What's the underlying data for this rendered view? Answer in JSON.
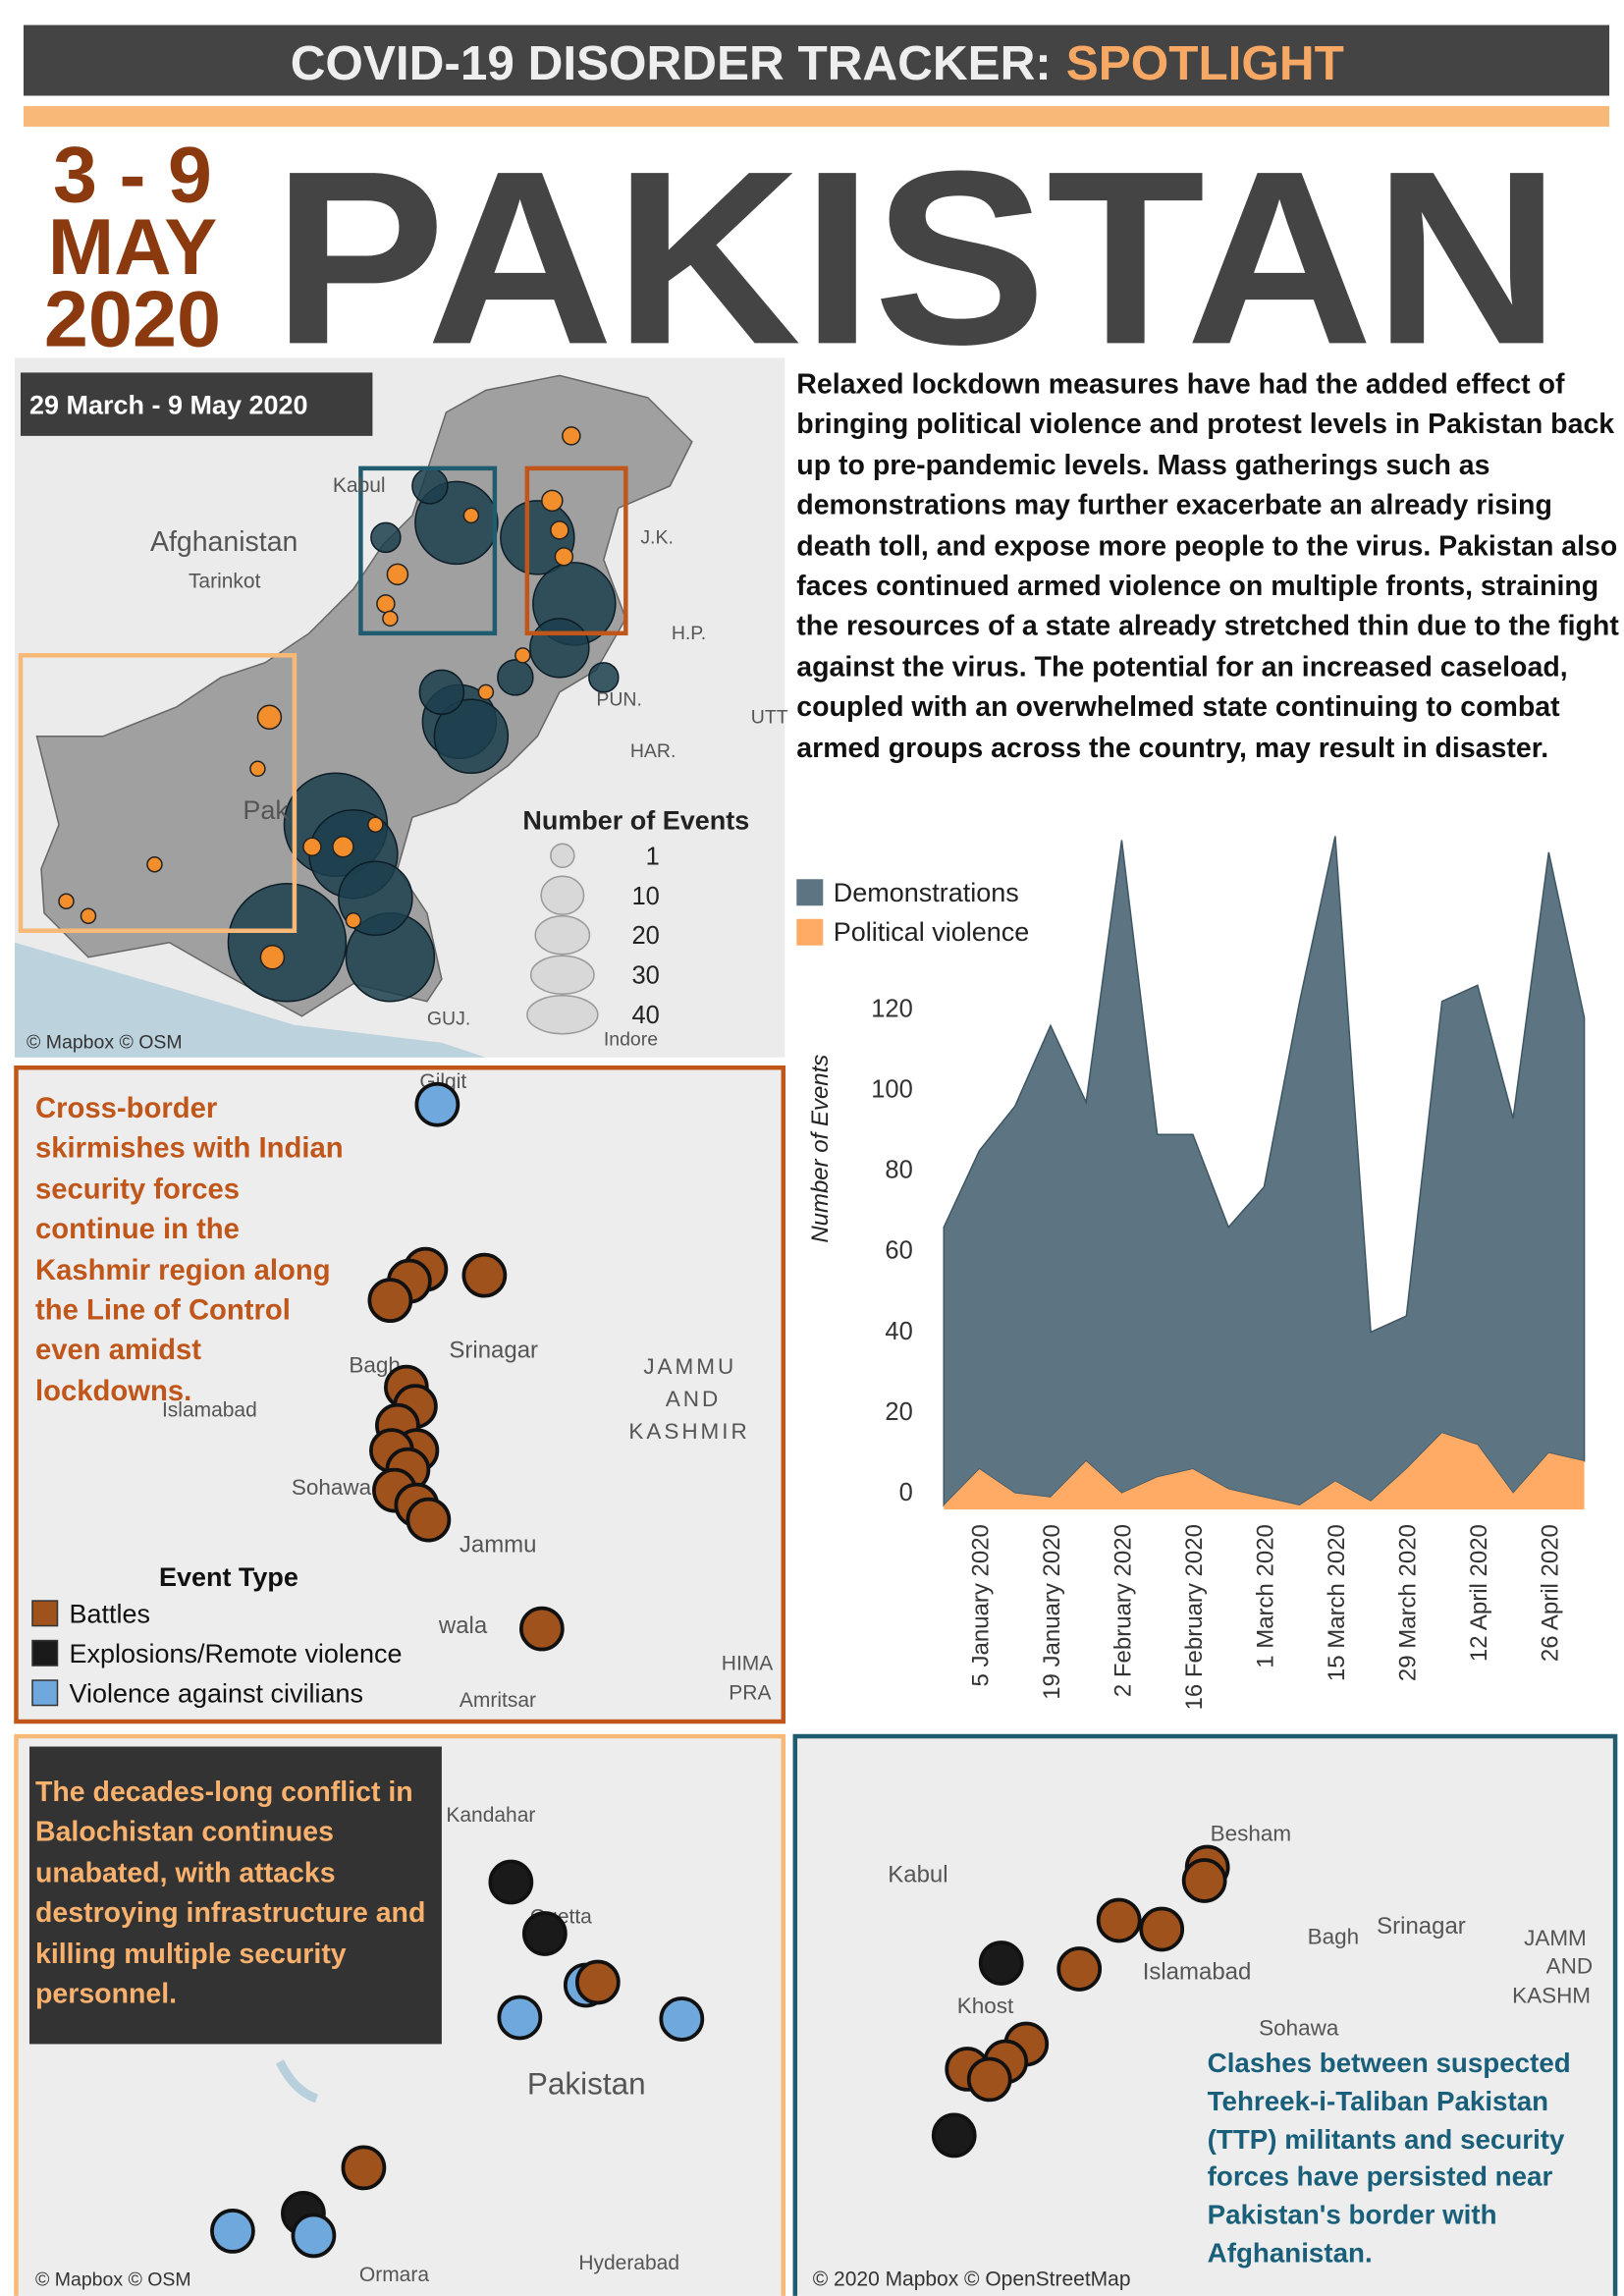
{
  "header": {
    "title": "COVID-19 DISORDER TRACKER:",
    "highlight": "SPOTLIGHT"
  },
  "date": [
    "3 - 9",
    "MAY",
    "2020"
  ],
  "country": "PAKISTAN",
  "summary": "Relaxed lockdown measures have had the added effect of bringing political violence and protest levels in Pakistan back up to pre-pandemic levels. Mass gatherings such as demonstrations may further exacerbate an already rising death toll, and expose more people to the virus.  Pakistan also faces continued armed violence on multiple fronts, straining the resources of a state already stretched thin due to the fight against the virus. The potential for an increased caseload, coupled with an overwhelmed state continuing to combat armed groups across the country, may result in disaster.",
  "overview_map": {
    "period": "29 March - 9 May 2020",
    "labels": [
      "Afghanistan",
      "Tarinkot",
      "Kabul",
      "J.K.",
      "H.P.",
      "PUN.",
      "HAR.",
      "UTT",
      "Pak",
      "GUJ.",
      "Indore"
    ],
    "size_legend": {
      "title": "Number of Events",
      "values": [
        1,
        10,
        20,
        30,
        40
      ]
    },
    "attribution": "© Mapbox © OSM",
    "colors": {
      "demonstrations": "#1c3e4e",
      "political_violence": "#f28e2b"
    }
  },
  "chart_data": {
    "type": "area",
    "stacked": true,
    "categories": [
      null,
      "5 January 2020",
      null,
      "19 January 2020",
      null,
      "2 February 2020",
      null,
      "16 February 2020",
      null,
      "1 March 2020",
      null,
      "15 March 2020",
      null,
      "29 March 2020",
      null,
      "12 April 2020",
      null,
      "26 April 2020",
      null
    ],
    "series": [
      {
        "name": "Demonstrations",
        "color": "#5d7583",
        "values": [
          69,
          79,
          96,
          117,
          89,
          162,
          85,
          83,
          65,
          77,
          125,
          160,
          42,
          38,
          107,
          114,
          93,
          149,
          110
        ]
      },
      {
        "name": "Political violence",
        "color": "#ffab66",
        "values": [
          1,
          10,
          4,
          3,
          12,
          4,
          8,
          10,
          5,
          3,
          1,
          7,
          2,
          10,
          19,
          16,
          4,
          14,
          12
        ]
      }
    ],
    "y_label": "Number of Events",
    "ylim": [
      0,
      168
    ],
    "yticks": [
      0,
      20,
      40,
      60,
      80,
      100,
      120
    ],
    "grid": false,
    "legend": "top-left"
  },
  "kashmir_map": {
    "caption": "Cross-border skirmishes with Indian security forces continue in the Kashmir region along the Line of Control even amidst lockdowns.",
    "labels": [
      "Gilgit",
      "Srinagar",
      "JAMMU",
      "AND",
      "KASHMIR",
      "Bagh",
      "Islamabad",
      "Sohawa",
      "Jammu",
      "wala",
      "Amritsar",
      "HIMA",
      "PRA"
    ],
    "legend": {
      "title": "Event Type",
      "items": [
        {
          "name": "Battles",
          "color": "#a0521d"
        },
        {
          "name": "Explosions/Remote violence",
          "color": "#1a1a1a"
        },
        {
          "name": "Violence against civilians",
          "color": "#6fa8dc"
        }
      ]
    }
  },
  "balochistan_map": {
    "caption": "The decades-long conflict in Balochistan continues unabated, with attacks destroying infrastructure and killing multiple security personnel.",
    "labels": [
      "Kandahar",
      "Quetta",
      "Pakistan",
      "Hyderabad",
      "Ormara"
    ],
    "attribution": "© Mapbox © OSM"
  },
  "kpk_map": {
    "caption": "Clashes between suspected Tehreek-i-Taliban Pakistan (TTP) militants and security forces have persisted near Pakistan's border with Afghanistan.",
    "labels": [
      "Besham",
      "Kabul",
      "Srinagar",
      "Bagh",
      "Islamabad",
      "Khost",
      "Sohawa",
      "JAMM",
      "AND",
      "KASHM"
    ],
    "attribution": "© 2020 Mapbox © OpenStreetMap"
  }
}
